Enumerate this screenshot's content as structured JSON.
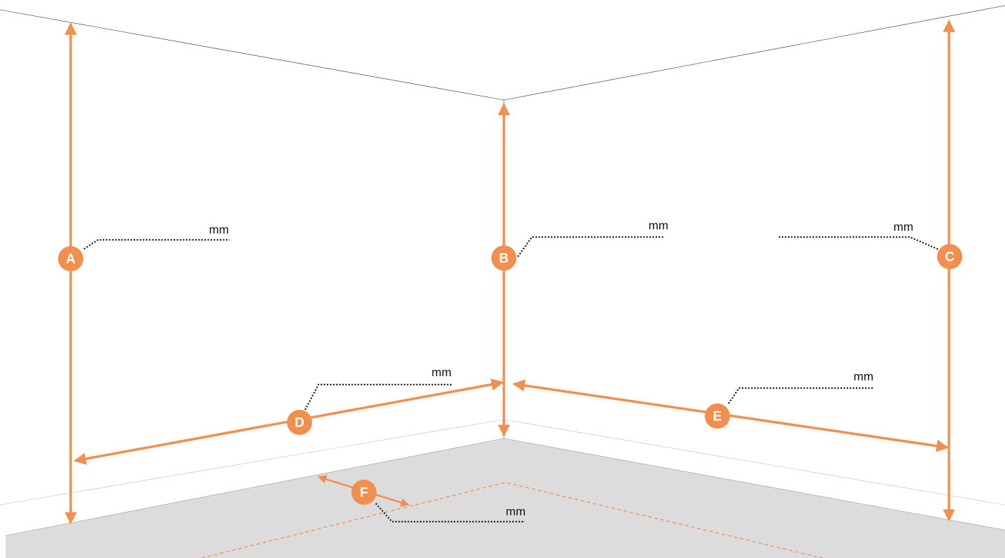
{
  "colors": {
    "accent": "#F18F4E",
    "floor": "#DCDCDC",
    "wall": "#FFFFFF",
    "leader": "#111111"
  },
  "measurements": [
    {
      "key": "A",
      "label": "A",
      "unit": "mm"
    },
    {
      "key": "B",
      "label": "B",
      "unit": "mm"
    },
    {
      "key": "C",
      "label": "C",
      "unit": "mm"
    },
    {
      "key": "D",
      "label": "D",
      "unit": "mm"
    },
    {
      "key": "E",
      "label": "E",
      "unit": "mm"
    },
    {
      "key": "F",
      "label": "F",
      "unit": "mm"
    }
  ]
}
